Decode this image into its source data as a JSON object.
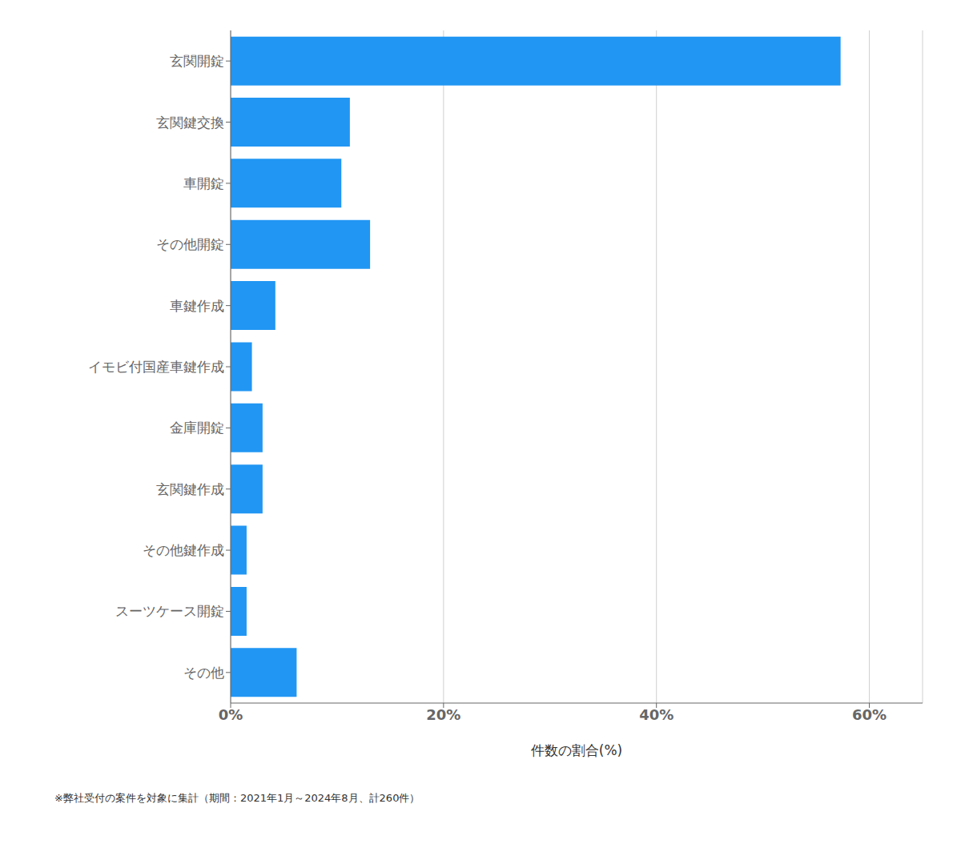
{
  "chart_data": {
    "type": "bar",
    "orientation": "horizontal",
    "categories": [
      "その他",
      "スーツケース開錠",
      "その他鍵作成",
      "玄関鍵作成",
      "金庫開錠",
      "イモビ付国産車鍵作成",
      "車鍵作成",
      "その他開錠",
      "車開錠",
      "玄関鍵交換",
      "玄関開錠"
    ],
    "values": [
      6.2,
      1.5,
      1.5,
      3.0,
      3.0,
      2.0,
      4.2,
      13.1,
      10.4,
      11.2,
      57.3
    ],
    "color": "#2196F3",
    "xlim": [
      0,
      65
    ],
    "xticks": [
      {
        "value": 0,
        "label": "0%"
      },
      {
        "value": 20,
        "label": "20%"
      },
      {
        "value": 40,
        "label": "40%"
      },
      {
        "value": 60,
        "label": "60%"
      }
    ],
    "xlabel": "件数の割合(%)",
    "footnote": "※弊社受付の案件を対象に集計（期間：2021年1月～2024年8月、計260件）",
    "grid": true
  }
}
